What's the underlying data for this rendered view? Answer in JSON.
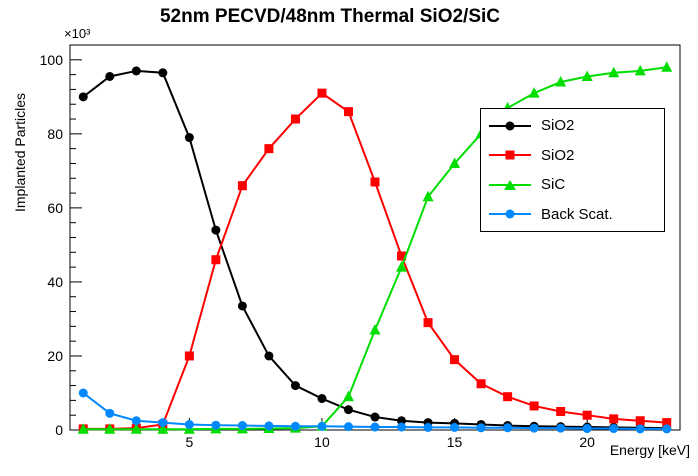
{
  "chart_data": {
    "type": "line",
    "title": "52nm PECVD/48nm Thermal SiO2/SiC",
    "xlabel": "Energy [keV]",
    "ylabel": "Implanted Particles",
    "y_multiplier": "×10³",
    "xlim": [
      0.5,
      23.5
    ],
    "ylim": [
      0,
      104
    ],
    "xticks": [
      5,
      10,
      15,
      20
    ],
    "yticks": [
      0,
      20,
      40,
      60,
      80,
      100
    ],
    "x_minor_step": 1,
    "y_minor_step": 4,
    "grid": false,
    "legend_position": "right",
    "series": [
      {
        "name": "SiO2",
        "color": "#000000",
        "marker": "circle",
        "x": [
          1,
          2,
          3,
          4,
          5,
          6,
          7,
          8,
          9,
          10,
          11,
          12,
          13,
          14,
          15,
          16,
          17,
          18,
          19,
          20,
          21,
          22,
          23
        ],
        "y": [
          90,
          95.5,
          97,
          96.5,
          79,
          54,
          33.5,
          20,
          12,
          8.5,
          5.5,
          3.5,
          2.5,
          2,
          1.8,
          1.5,
          1.2,
          1,
          0.9,
          0.8,
          0.7,
          0.6,
          0.5
        ]
      },
      {
        "name": "SiO2",
        "color": "#ff0000",
        "marker": "square",
        "x": [
          1,
          2,
          3,
          4,
          5,
          6,
          7,
          8,
          9,
          10,
          11,
          12,
          13,
          14,
          15,
          16,
          17,
          18,
          19,
          20,
          21,
          22,
          23
        ],
        "y": [
          0.3,
          0.3,
          0.5,
          1.5,
          20,
          46,
          66,
          76,
          84,
          91,
          86,
          67,
          47,
          29,
          19,
          12.5,
          9,
          6.5,
          5,
          4,
          3,
          2.5,
          2
        ]
      },
      {
        "name": "SiC",
        "color": "#00dd00",
        "marker": "triangle-up",
        "x": [
          1,
          2,
          3,
          4,
          5,
          6,
          7,
          8,
          9,
          10,
          11,
          12,
          13,
          14,
          15,
          16,
          17,
          18,
          19,
          20,
          21,
          22,
          23
        ],
        "y": [
          0.2,
          0.2,
          0.2,
          0.2,
          0.2,
          0.3,
          0.3,
          0.4,
          0.5,
          1,
          9,
          27,
          44,
          63,
          72,
          80,
          87,
          91,
          94,
          95.5,
          96.5,
          97,
          98
        ]
      },
      {
        "name": "Back Scat.",
        "color": "#0088ff",
        "marker": "circle",
        "x": [
          1,
          2,
          3,
          4,
          5,
          6,
          7,
          8,
          9,
          10,
          11,
          12,
          13,
          14,
          15,
          16,
          17,
          18,
          19,
          20,
          21,
          22,
          23
        ],
        "y": [
          10,
          4.5,
          2.5,
          2,
          1.5,
          1.3,
          1.2,
          1.1,
          1,
          1,
          0.9,
          0.8,
          0.8,
          0.7,
          0.7,
          0.6,
          0.6,
          0.5,
          0.5,
          0.4,
          0.4,
          0.3,
          0.3
        ]
      }
    ]
  }
}
